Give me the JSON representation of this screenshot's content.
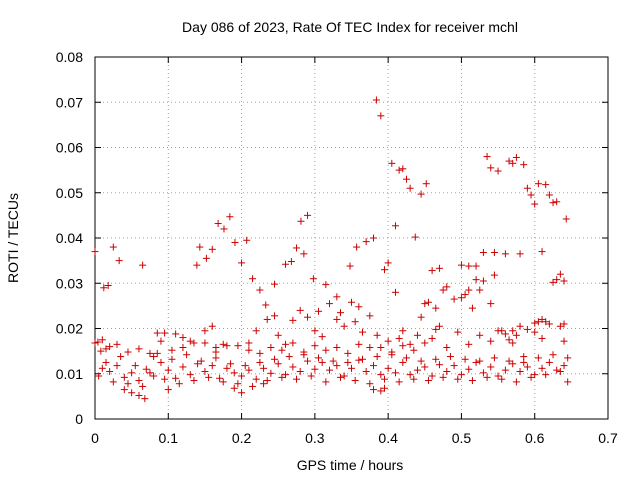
{
  "chart_data": {
    "type": "scatter",
    "title": "Day 086 of 2023, Rate Of TEC Index for receiver mchl",
    "xlabel": "GPS time / hours",
    "ylabel": "ROTI / TECUs",
    "xlim": [
      0,
      0.7
    ],
    "ylim": [
      0,
      0.08
    ],
    "x_ticks": [
      "0",
      "0.1",
      "0.2",
      "0.3",
      "0.4",
      "0.5",
      "0.6",
      "0.7"
    ],
    "y_ticks": [
      "0",
      "0.01",
      "0.02",
      "0.03",
      "0.04",
      "0.05",
      "0.06",
      "0.07",
      "0.08"
    ],
    "grid": true,
    "marker": "+",
    "series_color": "#cc0000",
    "points": [
      [
        0.0,
        0.037
      ],
      [
        0.004,
        0.017
      ],
      [
        0.008,
        0.015
      ],
      [
        0.012,
        0.029
      ],
      [
        0.018,
        0.0295
      ],
      [
        0.025,
        0.038
      ],
      [
        0.033,
        0.035
      ],
      [
        0.065,
        0.034
      ],
      [
        0.139,
        0.034
      ],
      [
        0.143,
        0.038
      ],
      [
        0.152,
        0.0355
      ],
      [
        0.16,
        0.0375
      ],
      [
        0.168,
        0.0432
      ],
      [
        0.176,
        0.042
      ],
      [
        0.184,
        0.0447
      ],
      [
        0.191,
        0.039
      ],
      [
        0.2,
        0.0345
      ],
      [
        0.207,
        0.0395
      ],
      [
        0.215,
        0.031
      ],
      [
        0.225,
        0.0285
      ],
      [
        0.233,
        0.0252
      ],
      [
        0.245,
        0.0298
      ],
      [
        0.26,
        0.0342
      ],
      [
        0.268,
        0.0348
      ],
      [
        0.275,
        0.0378
      ],
      [
        0.281,
        0.0437
      ],
      [
        0.285,
        0.0365
      ],
      [
        0.29,
        0.045
      ],
      [
        0.298,
        0.031
      ],
      [
        0.315,
        0.0297
      ],
      [
        0.33,
        0.027
      ],
      [
        0.348,
        0.0338
      ],
      [
        0.357,
        0.038
      ],
      [
        0.37,
        0.0392
      ],
      [
        0.38,
        0.04
      ],
      [
        0.384,
        0.0705
      ],
      [
        0.39,
        0.067
      ],
      [
        0.395,
        0.033
      ],
      [
        0.4,
        0.0345
      ],
      [
        0.405,
        0.0565
      ],
      [
        0.41,
        0.0427
      ],
      [
        0.415,
        0.055
      ],
      [
        0.42,
        0.0553
      ],
      [
        0.425,
        0.053
      ],
      [
        0.43,
        0.051
      ],
      [
        0.437,
        0.0402
      ],
      [
        0.445,
        0.0497
      ],
      [
        0.452,
        0.052
      ],
      [
        0.46,
        0.0328
      ],
      [
        0.47,
        0.0333
      ],
      [
        0.5,
        0.034
      ],
      [
        0.51,
        0.0338
      ],
      [
        0.52,
        0.0338
      ],
      [
        0.53,
        0.0368
      ],
      [
        0.535,
        0.058
      ],
      [
        0.54,
        0.0555
      ],
      [
        0.545,
        0.0368
      ],
      [
        0.55,
        0.0548
      ],
      [
        0.56,
        0.0365
      ],
      [
        0.565,
        0.057
      ],
      [
        0.57,
        0.0565
      ],
      [
        0.575,
        0.0578
      ],
      [
        0.58,
        0.0365
      ],
      [
        0.585,
        0.0562
      ],
      [
        0.59,
        0.051
      ],
      [
        0.595,
        0.0495
      ],
      [
        0.6,
        0.0475
      ],
      [
        0.605,
        0.052
      ],
      [
        0.61,
        0.037
      ],
      [
        0.615,
        0.0518
      ],
      [
        0.62,
        0.0495
      ],
      [
        0.625,
        0.0478
      ],
      [
        0.63,
        0.048
      ],
      [
        0.635,
        0.032
      ],
      [
        0.64,
        0.0305
      ],
      [
        0.643,
        0.0442
      ],
      [
        0.01,
        0.0112
      ],
      [
        0.02,
        0.0105
      ],
      [
        0.03,
        0.0118
      ],
      [
        0.04,
        0.0092
      ],
      [
        0.05,
        0.0102
      ],
      [
        0.06,
        0.0085
      ],
      [
        0.07,
        0.011
      ],
      [
        0.08,
        0.0095
      ],
      [
        0.09,
        0.0125
      ],
      [
        0.1,
        0.0108
      ],
      [
        0.11,
        0.009
      ],
      [
        0.12,
        0.0115
      ],
      [
        0.13,
        0.0098
      ],
      [
        0.14,
        0.0122
      ],
      [
        0.15,
        0.0105
      ],
      [
        0.16,
        0.0118
      ],
      [
        0.17,
        0.009
      ],
      [
        0.18,
        0.0112
      ],
      [
        0.19,
        0.0102
      ],
      [
        0.2,
        0.0095
      ],
      [
        0.21,
        0.0108
      ],
      [
        0.22,
        0.0088
      ],
      [
        0.23,
        0.0112
      ],
      [
        0.24,
        0.0101
      ],
      [
        0.25,
        0.0122
      ],
      [
        0.26,
        0.0098
      ],
      [
        0.27,
        0.0115
      ],
      [
        0.28,
        0.0105
      ],
      [
        0.29,
        0.0128
      ],
      [
        0.3,
        0.011
      ],
      [
        0.31,
        0.0125
      ],
      [
        0.32,
        0.0108
      ],
      [
        0.33,
        0.0118
      ],
      [
        0.34,
        0.0095
      ],
      [
        0.35,
        0.0112
      ],
      [
        0.36,
        0.013
      ],
      [
        0.37,
        0.0105
      ],
      [
        0.38,
        0.0118
      ],
      [
        0.39,
        0.0098
      ],
      [
        0.4,
        0.0112
      ],
      [
        0.41,
        0.0102
      ],
      [
        0.42,
        0.0125
      ],
      [
        0.43,
        0.0098
      ],
      [
        0.44,
        0.0108
      ],
      [
        0.45,
        0.0115
      ],
      [
        0.46,
        0.0095
      ],
      [
        0.47,
        0.012
      ],
      [
        0.48,
        0.0105
      ],
      [
        0.49,
        0.0118
      ],
      [
        0.5,
        0.0098
      ],
      [
        0.51,
        0.011
      ],
      [
        0.52,
        0.0125
      ],
      [
        0.53,
        0.0102
      ],
      [
        0.54,
        0.0115
      ],
      [
        0.55,
        0.0095
      ],
      [
        0.56,
        0.0108
      ],
      [
        0.57,
        0.0122
      ],
      [
        0.58,
        0.0105
      ],
      [
        0.59,
        0.0115
      ],
      [
        0.6,
        0.0098
      ],
      [
        0.61,
        0.0112
      ],
      [
        0.62,
        0.0125
      ],
      [
        0.63,
        0.0108
      ],
      [
        0.64,
        0.0118
      ],
      [
        0.005,
        0.0095
      ],
      [
        0.015,
        0.0125
      ],
      [
        0.025,
        0.0082
      ],
      [
        0.035,
        0.0138
      ],
      [
        0.045,
        0.0078
      ],
      [
        0.055,
        0.0118
      ],
      [
        0.065,
        0.0072
      ],
      [
        0.075,
        0.0102
      ],
      [
        0.085,
        0.0145
      ],
      [
        0.095,
        0.0088
      ],
      [
        0.105,
        0.0132
      ],
      [
        0.115,
        0.0078
      ],
      [
        0.125,
        0.0142
      ],
      [
        0.135,
        0.0085
      ],
      [
        0.145,
        0.0128
      ],
      [
        0.155,
        0.0092
      ],
      [
        0.165,
        0.0135
      ],
      [
        0.175,
        0.0082
      ],
      [
        0.185,
        0.0122
      ],
      [
        0.195,
        0.0078
      ],
      [
        0.205,
        0.0118
      ],
      [
        0.215,
        0.0072
      ],
      [
        0.225,
        0.0125
      ],
      [
        0.235,
        0.0085
      ],
      [
        0.245,
        0.0132
      ],
      [
        0.255,
        0.0092
      ],
      [
        0.265,
        0.0138
      ],
      [
        0.275,
        0.0088
      ],
      [
        0.285,
        0.0142
      ],
      [
        0.295,
        0.0095
      ],
      [
        0.305,
        0.0135
      ],
      [
        0.315,
        0.0082
      ],
      [
        0.325,
        0.0128
      ],
      [
        0.335,
        0.0092
      ],
      [
        0.345,
        0.0125
      ],
      [
        0.355,
        0.0085
      ],
      [
        0.365,
        0.0132
      ],
      [
        0.375,
        0.0078
      ],
      [
        0.385,
        0.0138
      ],
      [
        0.395,
        0.0088
      ],
      [
        0.405,
        0.0142
      ],
      [
        0.415,
        0.0082
      ],
      [
        0.425,
        0.0135
      ],
      [
        0.435,
        0.0088
      ],
      [
        0.445,
        0.0128
      ],
      [
        0.455,
        0.0085
      ],
      [
        0.465,
        0.0132
      ],
      [
        0.475,
        0.0092
      ],
      [
        0.485,
        0.0138
      ],
      [
        0.495,
        0.0088
      ],
      [
        0.505,
        0.0132
      ],
      [
        0.515,
        0.0085
      ],
      [
        0.525,
        0.0128
      ],
      [
        0.535,
        0.0092
      ],
      [
        0.545,
        0.0135
      ],
      [
        0.555,
        0.0088
      ],
      [
        0.565,
        0.0128
      ],
      [
        0.575,
        0.0082
      ],
      [
        0.585,
        0.0138
      ],
      [
        0.595,
        0.0092
      ],
      [
        0.605,
        0.0135
      ],
      [
        0.615,
        0.0098
      ],
      [
        0.625,
        0.0142
      ],
      [
        0.635,
        0.0105
      ],
      [
        0.645,
        0.0135
      ],
      [
        0.01,
        0.0175
      ],
      [
        0.02,
        0.016
      ],
      [
        0.04,
        0.0065
      ],
      [
        0.05,
        0.0058
      ],
      [
        0.06,
        0.0052
      ],
      [
        0.068,
        0.0045
      ],
      [
        0.08,
        0.0138
      ],
      [
        0.085,
        0.019
      ],
      [
        0.095,
        0.019
      ],
      [
        0.1,
        0.0065
      ],
      [
        0.11,
        0.0188
      ],
      [
        0.12,
        0.018
      ],
      [
        0.13,
        0.0172
      ],
      [
        0.15,
        0.0195
      ],
      [
        0.16,
        0.0205
      ],
      [
        0.165,
        0.0148
      ],
      [
        0.175,
        0.0165
      ],
      [
        0.19,
        0.0068
      ],
      [
        0.2,
        0.0058
      ],
      [
        0.21,
        0.0168
      ],
      [
        0.22,
        0.0195
      ],
      [
        0.23,
        0.0078
      ],
      [
        0.235,
        0.022
      ],
      [
        0.245,
        0.0228
      ],
      [
        0.25,
        0.0185
      ],
      [
        0.26,
        0.0165
      ],
      [
        0.27,
        0.0218
      ],
      [
        0.28,
        0.024
      ],
      [
        0.29,
        0.0225
      ],
      [
        0.3,
        0.0195
      ],
      [
        0.305,
        0.0238
      ],
      [
        0.31,
        0.0182
      ],
      [
        0.32,
        0.0255
      ],
      [
        0.33,
        0.022
      ],
      [
        0.335,
        0.0235
      ],
      [
        0.34,
        0.0205
      ],
      [
        0.35,
        0.0258
      ],
      [
        0.355,
        0.0215
      ],
      [
        0.36,
        0.0248
      ],
      [
        0.365,
        0.0192
      ],
      [
        0.375,
        0.0228
      ],
      [
        0.38,
        0.0065
      ],
      [
        0.385,
        0.0185
      ],
      [
        0.39,
        0.0062
      ],
      [
        0.395,
        0.0068
      ],
      [
        0.4,
        0.0172
      ],
      [
        0.41,
        0.028
      ],
      [
        0.415,
        0.0178
      ],
      [
        0.42,
        0.0195
      ],
      [
        0.43,
        0.0165
      ],
      [
        0.44,
        0.0185
      ],
      [
        0.445,
        0.0225
      ],
      [
        0.45,
        0.0255
      ],
      [
        0.455,
        0.0258
      ],
      [
        0.46,
        0.0178
      ],
      [
        0.465,
        0.0245
      ],
      [
        0.47,
        0.0205
      ],
      [
        0.475,
        0.0285
      ],
      [
        0.48,
        0.0292
      ],
      [
        0.49,
        0.0265
      ],
      [
        0.5,
        0.0268
      ],
      [
        0.505,
        0.0275
      ],
      [
        0.51,
        0.0285
      ],
      [
        0.515,
        0.0245
      ],
      [
        0.52,
        0.0308
      ],
      [
        0.525,
        0.0285
      ],
      [
        0.53,
        0.0305
      ],
      [
        0.54,
        0.0255
      ],
      [
        0.545,
        0.0318
      ],
      [
        0.55,
        0.0195
      ],
      [
        0.56,
        0.0188
      ],
      [
        0.565,
        0.0175
      ],
      [
        0.57,
        0.0195
      ],
      [
        0.575,
        0.0185
      ],
      [
        0.58,
        0.0205
      ],
      [
        0.59,
        0.0198
      ],
      [
        0.6,
        0.0192
      ],
      [
        0.605,
        0.0215
      ],
      [
        0.61,
        0.022
      ],
      [
        0.615,
        0.0215
      ],
      [
        0.62,
        0.021
      ],
      [
        0.625,
        0.0302
      ],
      [
        0.63,
        0.0308
      ],
      [
        0.635,
        0.0205
      ],
      [
        0.64,
        0.021
      ],
      [
        0.645,
        0.0082
      ],
      [
        0.6,
        0.0212
      ],
      [
        0.585,
        0.0125
      ],
      [
        0.555,
        0.0195
      ],
      [
        0.525,
        0.0185
      ],
      [
        0.495,
        0.0192
      ],
      [
        0.465,
        0.0198
      ],
      [
        0.435,
        0.0152
      ],
      [
        0.405,
        0.0148
      ],
      [
        0.375,
        0.0158
      ],
      [
        0.345,
        0.0145
      ],
      [
        0.315,
        0.0152
      ],
      [
        0.285,
        0.0148
      ],
      [
        0.255,
        0.0152
      ],
      [
        0.225,
        0.0145
      ],
      [
        0.195,
        0.0162
      ],
      [
        0.165,
        0.0158
      ],
      [
        0.135,
        0.0168
      ],
      [
        0.105,
        0.0152
      ],
      [
        0.075,
        0.0145
      ],
      [
        0.045,
        0.0148
      ],
      [
        0.015,
        0.0155
      ],
      [
        0.64,
        0.0172
      ],
      [
        0.61,
        0.0178
      ],
      [
        0.57,
        0.0168
      ],
      [
        0.54,
        0.0172
      ],
      [
        0.51,
        0.0165
      ],
      [
        0.48,
        0.0158
      ],
      [
        0.45,
        0.0168
      ],
      [
        0.42,
        0.0162
      ],
      [
        0.39,
        0.0158
      ],
      [
        0.36,
        0.0165
      ],
      [
        0.33,
        0.0158
      ],
      [
        0.3,
        0.0162
      ],
      [
        0.27,
        0.0168
      ],
      [
        0.24,
        0.0158
      ],
      [
        0.21,
        0.0152
      ],
      [
        0.18,
        0.0162
      ],
      [
        0.15,
        0.0168
      ],
      [
        0.12,
        0.0158
      ],
      [
        0.09,
        0.0172
      ],
      [
        0.06,
        0.0155
      ],
      [
        0.03,
        0.0165
      ],
      [
        0.0,
        0.0168
      ]
    ]
  }
}
